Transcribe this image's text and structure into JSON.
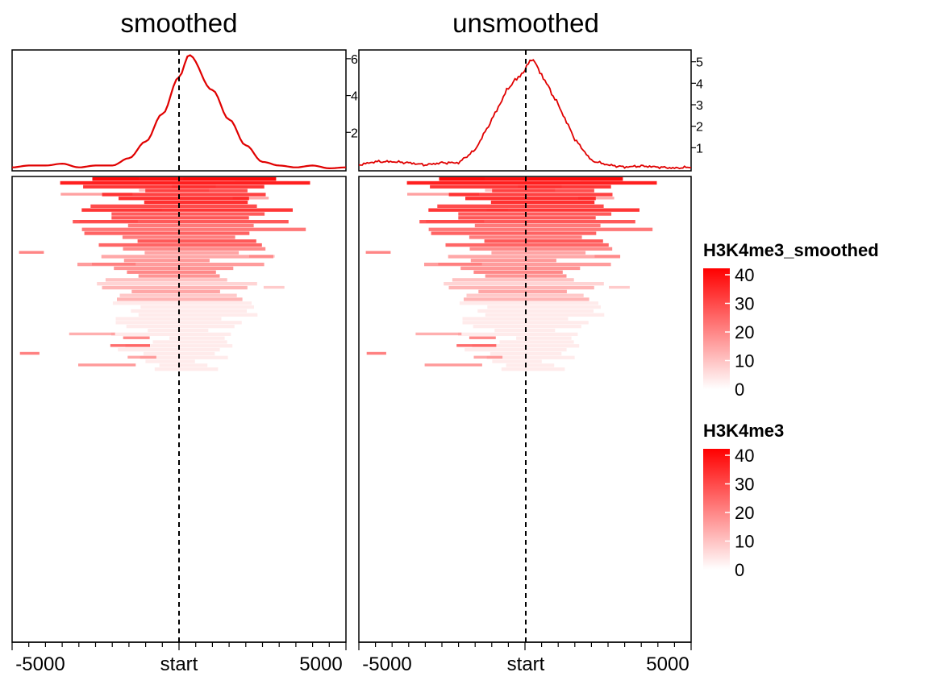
{
  "chart_data": [
    {
      "type": "line",
      "panel": "smoothed",
      "title": "smoothed",
      "x": [
        -5000,
        -4500,
        -4000,
        -3500,
        -3000,
        -2500,
        -2000,
        -1500,
        -1000,
        -500,
        0,
        300,
        1000,
        1500,
        2000,
        2500,
        3000,
        3500,
        4000,
        4500,
        5000
      ],
      "values": [
        0.1,
        0.2,
        0.2,
        0.3,
        0.1,
        0.2,
        0.2,
        0.6,
        1.5,
        3.0,
        5.0,
        6.2,
        4.3,
        2.7,
        1.3,
        0.4,
        0.2,
        0.1,
        0.2,
        0.05,
        0.1
      ],
      "ylim": [
        0,
        6.3
      ],
      "yticks": [
        "2",
        "4",
        "6"
      ],
      "color": "#e00000"
    },
    {
      "type": "line",
      "panel": "unsmoothed",
      "title": "unsmoothed",
      "x": [
        -5000,
        -4500,
        -4000,
        -3500,
        -3000,
        -2500,
        -2000,
        -1500,
        -1000,
        -500,
        0,
        200,
        500,
        1000,
        1500,
        2000,
        2500,
        3000,
        3500,
        4000,
        4500,
        5000
      ],
      "values": [
        0.2,
        0.35,
        0.35,
        0.3,
        0.2,
        0.3,
        0.3,
        0.9,
        2.3,
        3.8,
        4.6,
        5.2,
        4.4,
        3.0,
        1.4,
        0.4,
        0.2,
        0.1,
        0.15,
        0.1,
        0.05,
        0.1
      ],
      "ylim": [
        0,
        5.4
      ],
      "yticks": [
        "1",
        "2",
        "3",
        "4",
        "5"
      ],
      "color": "#e00000"
    },
    {
      "type": "heatmap",
      "x_ticks": [
        "-5000",
        "start",
        "5000"
      ],
      "rows": 120,
      "active_rows": 50,
      "value_range": [
        0,
        40
      ],
      "legends": [
        {
          "title": "H3K4me3_smoothed",
          "ticks": [
            "40",
            "30",
            "20",
            "10",
            "0"
          ]
        },
        {
          "title": "H3K4me3",
          "ticks": [
            "40",
            "30",
            "20",
            "10",
            "0"
          ]
        }
      ],
      "colors": {
        "low": "#ffffff",
        "high": "#ff0000"
      }
    }
  ]
}
